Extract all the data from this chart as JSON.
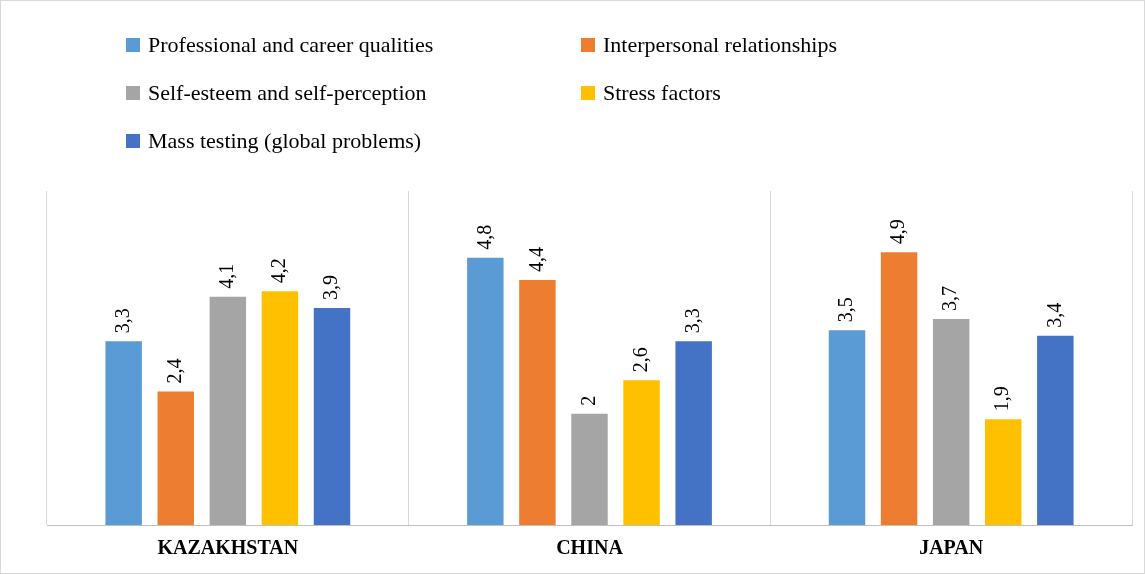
{
  "chart_data": {
    "type": "bar",
    "categories": [
      "KAZAKHSTAN",
      "CHINA",
      "JAPAN"
    ],
    "series": [
      {
        "name": "Professional and career qualities",
        "color": "#5b9bd5",
        "values": [
          3.3,
          4.8,
          3.5
        ],
        "value_labels": [
          "3,3",
          "4,8",
          "3,5"
        ]
      },
      {
        "name": "Interpersonal relationships",
        "color": "#ed7d31",
        "values": [
          2.4,
          4.4,
          4.9
        ],
        "value_labels": [
          "2,4",
          "4,4",
          "4,9"
        ]
      },
      {
        "name": "Self-esteem and self-perception",
        "color": "#a5a5a5",
        "values": [
          4.1,
          2,
          3.7
        ],
        "value_labels": [
          "4,1",
          "2",
          "3,7"
        ]
      },
      {
        "name": "Stress factors",
        "color": "#ffc000",
        "values": [
          4.2,
          2.6,
          1.9
        ],
        "value_labels": [
          "4,2",
          "2,6",
          "1,9"
        ]
      },
      {
        "name": "Mass testing (global problems)",
        "color": "#4472c4",
        "values": [
          3.9,
          3.3,
          3.4
        ],
        "value_labels": [
          "3,9",
          "3,3",
          "3,4"
        ]
      }
    ],
    "ylim": [
      0,
      6
    ],
    "grid": "x",
    "legend": "top",
    "tick_labels": "x"
  }
}
